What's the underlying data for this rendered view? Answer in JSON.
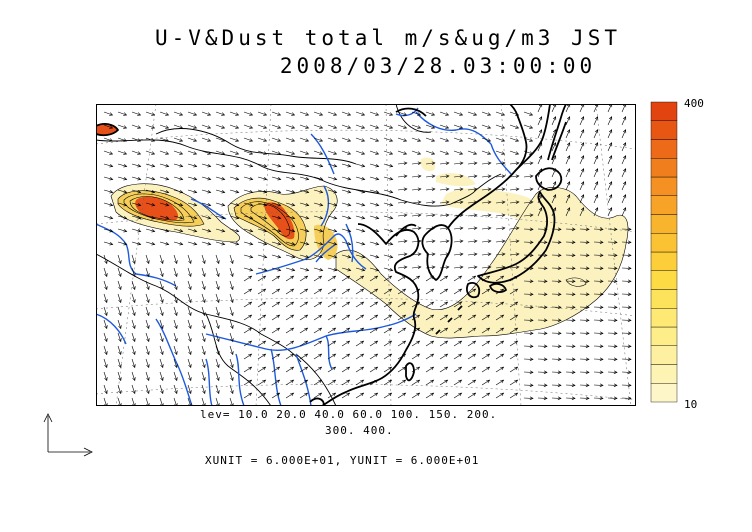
{
  "title": {
    "line1": "U-V&Dust total m/s&ug/m3 JST",
    "line2": "2008/03/28.03:00:00"
  },
  "colorbar": {
    "max_label": "400",
    "min_label": "10",
    "colors": [
      "#fdf6c8",
      "#fdf3b3",
      "#fdf0a0",
      "#fdee8a",
      "#fde973",
      "#fde35b",
      "#fddb45",
      "#fccf3a",
      "#fbc233",
      "#f9b42d",
      "#f7a328",
      "#f49122",
      "#f17e1d",
      "#ed6a18",
      "#e85614",
      "#e24410"
    ]
  },
  "contour_levels": {
    "line1": "lev= 10.0 20.0 40.0 60.0 100. 150. 200.",
    "line2": "300. 400."
  },
  "vector_units": "XUNIT = 6.000E+01, YUNIT = 6.000E+01",
  "map": {
    "coast_color": "#000000",
    "river_color": "#1e5adc",
    "low_dust_color": "#fbf2c0",
    "mid_dust_color": "#f6cf5a",
    "high_dust_color": "#e8501a"
  }
}
